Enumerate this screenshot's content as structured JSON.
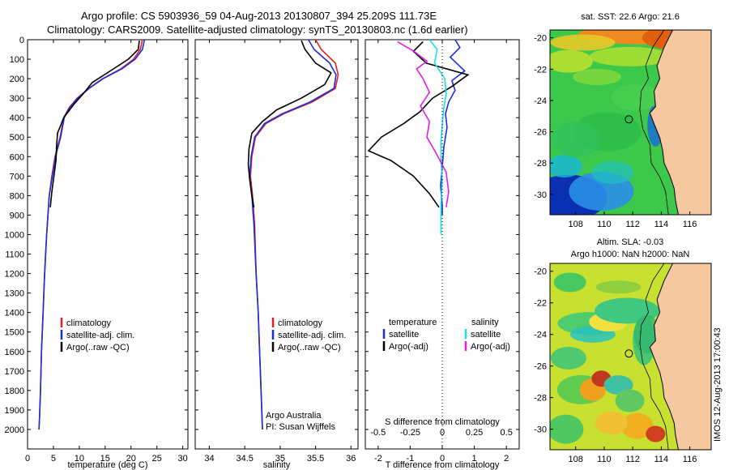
{
  "header": {
    "title_line1": "Argo profile: CS 5903936_59 04-Aug-2013 20130807_394 25.209S 111.73E",
    "title_line2": "Climatology: CARS2009. Satellite-adjusted climatology: synTS_20130803.nc (1.6d earlier)"
  },
  "stamp": "IMOS 12-Aug-2013 17:00:43",
  "colors": {
    "climatology": "#e02020",
    "satellite": "#1b2be0",
    "argo": "#000000",
    "cyan": "#18e0e8",
    "magenta": "#e020e0",
    "land": "#f5c8a0"
  },
  "chart_data": [
    {
      "type": "line",
      "name": "temperature-panel",
      "xlabel": "temperature (deg C)",
      "ylabel": "",
      "xlim": [
        0,
        31
      ],
      "ylim": [
        2100,
        0
      ],
      "xticks": [
        "0",
        "5",
        "10",
        "15",
        "20",
        "25",
        "30"
      ],
      "yticks": [
        "0",
        "100",
        "200",
        "300",
        "400",
        "500",
        "600",
        "700",
        "800",
        "900",
        "1000",
        "1100",
        "1200",
        "1300",
        "1400",
        "1500",
        "1600",
        "1700",
        "1800",
        "1900",
        "2000"
      ],
      "legend": [
        "climatology",
        "satellite-adj. clim.",
        "Argo(..raw -QC)"
      ],
      "legend_position": "lower-center",
      "series": [
        {
          "name": "climatology",
          "color": "#e02020",
          "x": [
            22.2,
            21.8,
            20.5,
            18.0,
            14.5,
            11.8,
            9.6,
            8.0,
            7.0,
            6.3,
            5.3,
            4.7,
            4.2,
            3.7,
            3.3,
            3.0,
            2.7,
            2.5,
            2.3,
            2.2
          ],
          "y": [
            0,
            50,
            100,
            150,
            200,
            250,
            300,
            350,
            400,
            500,
            600,
            700,
            800,
            1000,
            1200,
            1400,
            1600,
            1800,
            1950,
            2000
          ]
        },
        {
          "name": "satellite-adj. clim.",
          "color": "#1b2be0",
          "x": [
            22.6,
            22.2,
            20.8,
            18.2,
            14.6,
            11.9,
            9.7,
            8.1,
            7.1,
            6.4,
            5.4,
            4.8,
            4.2,
            3.7,
            3.3,
            3.0,
            2.7,
            2.5,
            2.3,
            2.2
          ],
          "y": [
            0,
            50,
            100,
            150,
            200,
            250,
            300,
            350,
            400,
            500,
            600,
            700,
            800,
            1000,
            1200,
            1400,
            1600,
            1800,
            1950,
            2000
          ]
        },
        {
          "name": "Argo(..raw -QC)",
          "color": "#000000",
          "x": [
            21.6,
            21.4,
            19.5,
            16.0,
            12.5,
            11.0,
            9.0,
            7.0,
            5.8,
            5.6,
            5.5,
            5.1,
            4.7,
            4.4
          ],
          "y": [
            5,
            50,
            100,
            160,
            220,
            270,
            330,
            400,
            480,
            550,
            620,
            700,
            780,
            860
          ]
        }
      ]
    },
    {
      "type": "line",
      "name": "salinity-panel",
      "xlabel": "salinity",
      "xlim": [
        33.8,
        36.1
      ],
      "ylim": [
        2100,
        0
      ],
      "xticks": [
        "34",
        "34.5",
        "35",
        "35.5",
        "36"
      ],
      "legend": [
        "climatology",
        "satellite-adj. clim.",
        "Argo(..raw -QC)"
      ],
      "legend_position": "lower-center",
      "annotation": [
        "Argo Australia",
        "PI: Susan Wijffels"
      ],
      "series": [
        {
          "name": "climatology",
          "color": "#e02020",
          "x": [
            35.5,
            35.58,
            35.78,
            35.82,
            35.78,
            35.45,
            35.05,
            34.8,
            34.65,
            34.6,
            34.58,
            34.61,
            34.64,
            34.66,
            34.69,
            34.71,
            34.73,
            34.75
          ],
          "y": [
            0,
            50,
            120,
            180,
            250,
            320,
            380,
            430,
            500,
            600,
            700,
            800,
            950,
            1200,
            1400,
            1600,
            1800,
            2000
          ]
        },
        {
          "name": "satellite-adj. clim.",
          "color": "#1b2be0",
          "x": [
            35.4,
            35.48,
            35.7,
            35.79,
            35.76,
            35.42,
            35.03,
            34.78,
            34.64,
            34.59,
            34.57,
            34.6,
            34.63,
            34.66,
            34.69,
            34.71,
            34.73,
            34.75
          ],
          "y": [
            0,
            50,
            120,
            180,
            250,
            320,
            380,
            430,
            500,
            600,
            700,
            800,
            950,
            1200,
            1400,
            1600,
            1800,
            2000
          ]
        },
        {
          "name": "Argo(..raw -QC)",
          "color": "#000000",
          "x": [
            35.3,
            35.35,
            35.5,
            35.72,
            35.63,
            35.3,
            34.95,
            34.75,
            34.6,
            34.56,
            34.55,
            34.57,
            34.6,
            34.63
          ],
          "y": [
            5,
            50,
            120,
            170,
            230,
            300,
            360,
            420,
            480,
            560,
            640,
            720,
            800,
            860
          ]
        }
      ]
    },
    {
      "type": "line",
      "name": "difference-panel",
      "xlabel": "T difference from climatology",
      "xlabel_top": "S difference from climatology",
      "xlim": [
        -2.4,
        2.4
      ],
      "ylim": [
        2100,
        0
      ],
      "xticks": [
        "-2",
        "-1",
        "0",
        "1",
        "2"
      ],
      "xticks_salinity": [
        "-0.5",
        "-0.25",
        "0",
        "0.25",
        "0.5"
      ],
      "legend_temperature": {
        "heading": "temperature",
        "items": [
          "satellite",
          "Argo(-adj)"
        ]
      },
      "legend_salinity": {
        "heading": "salinity",
        "items": [
          "satellite",
          "Argo(-adj)"
        ]
      },
      "series": [
        {
          "name": "temperature satellite",
          "color": "#1b2be0",
          "x": [
            0.4,
            0.55,
            0.25,
            0.7,
            0.3,
            0.4,
            0.2,
            0.1,
            0.15,
            0.05,
            0.0,
            -0.05,
            0.0,
            0.0
          ],
          "y": [
            0,
            40,
            90,
            160,
            210,
            260,
            320,
            380,
            450,
            550,
            650,
            750,
            850,
            900
          ]
        },
        {
          "name": "temperature Argo(-adj)",
          "color": "#000000",
          "x": [
            -0.6,
            -0.9,
            -0.5,
            0.8,
            0.3,
            -0.3,
            -0.7,
            -1.2,
            -1.9,
            -2.3,
            -1.6,
            -0.9,
            -0.4,
            -0.1
          ],
          "y": [
            10,
            60,
            120,
            180,
            240,
            300,
            370,
            430,
            500,
            570,
            620,
            700,
            790,
            860
          ]
        },
        {
          "name": "salinity satellite",
          "color": "#18e0e8",
          "x": [
            -0.1,
            -0.04,
            -0.06,
            0.02,
            0.03,
            0.01,
            0.0,
            -0.01,
            -0.01,
            0.0,
            -0.01,
            -0.01
          ],
          "y": [
            0,
            50,
            120,
            200,
            280,
            360,
            440,
            520,
            620,
            720,
            850,
            1000
          ]
        },
        {
          "name": "salinity Argo(-adj)",
          "color": "#e020e0",
          "x": [
            -0.35,
            -0.22,
            -0.12,
            -0.2,
            -0.15,
            -0.1,
            -0.17,
            -0.1,
            -0.12,
            -0.05,
            0.03,
            0.05,
            0.03
          ],
          "y": [
            10,
            60,
            110,
            150,
            200,
            270,
            340,
            420,
            500,
            580,
            680,
            780,
            860
          ]
        }
      ]
    },
    {
      "type": "heatmap",
      "name": "sst-map",
      "title": "sat. SST: 22.6  Argo: 21.6",
      "xlim": [
        106.2,
        117.5
      ],
      "ylim": [
        -31.3,
        -19.5
      ],
      "xticks": [
        "108",
        "110",
        "112",
        "114",
        "116"
      ],
      "yticks": [
        "-20",
        "-22",
        "-24",
        "-26",
        "-28",
        "-30"
      ],
      "marker": {
        "lon": 111.73,
        "lat": -25.209
      }
    },
    {
      "type": "heatmap",
      "name": "sla-map",
      "title": "Altim. SLA: -0.03",
      "subtitle": "Argo h1000: NaN  h2000: NaN",
      "xlim": [
        106.2,
        117.5
      ],
      "ylim": [
        -31.3,
        -19.5
      ],
      "xticks": [
        "108",
        "110",
        "112",
        "114",
        "116"
      ],
      "yticks": [
        "-20",
        "-22",
        "-24",
        "-26",
        "-28",
        "-30"
      ],
      "marker": {
        "lon": 111.73,
        "lat": -25.209
      }
    }
  ]
}
